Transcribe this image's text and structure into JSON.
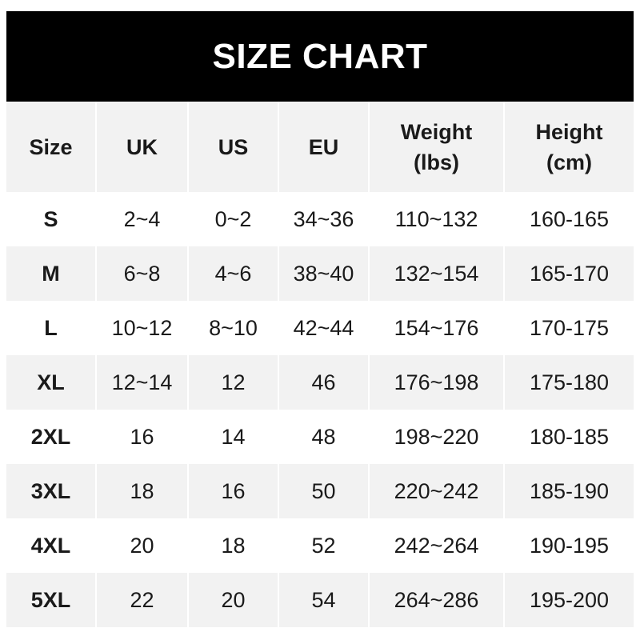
{
  "title": "SIZE CHART",
  "headers": [
    {
      "line1": "Size",
      "line2": ""
    },
    {
      "line1": "UK",
      "line2": ""
    },
    {
      "line1": "US",
      "line2": ""
    },
    {
      "line1": "EU",
      "line2": ""
    },
    {
      "line1": "Weight",
      "line2": "(lbs)"
    },
    {
      "line1": "Height",
      "line2": "(cm)"
    }
  ],
  "rows": [
    [
      "S",
      "2~4",
      "0~2",
      "34~36",
      "110~132",
      "160-165"
    ],
    [
      "M",
      "6~8",
      "4~6",
      "38~40",
      "132~154",
      "165-170"
    ],
    [
      "L",
      "10~12",
      "8~10",
      "42~44",
      "154~176",
      "170-175"
    ],
    [
      "XL",
      "12~14",
      "12",
      "46",
      "176~198",
      "175-180"
    ],
    [
      "2XL",
      "16",
      "14",
      "48",
      "198~220",
      "180-185"
    ],
    [
      "3XL",
      "18",
      "16",
      "50",
      "220~242",
      "185-190"
    ],
    [
      "4XL",
      "20",
      "18",
      "52",
      "242~264",
      "190-195"
    ],
    [
      "5XL",
      "22",
      "20",
      "54",
      "264~286",
      "195-200"
    ]
  ],
  "colors": {
    "header_bg": "#000000",
    "stripe": "#f2f2f2",
    "text": "#1a1a1a"
  }
}
